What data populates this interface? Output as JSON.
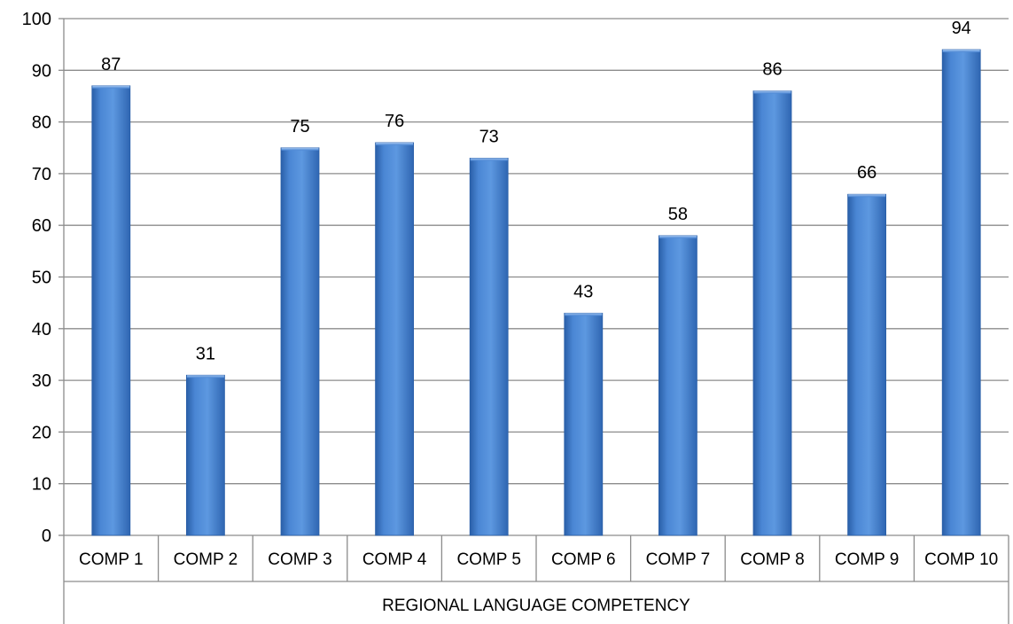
{
  "chart_data": {
    "type": "bar",
    "categories": [
      "COMP 1",
      "COMP 2",
      "COMP 3",
      "COMP 4",
      "COMP 5",
      "COMP 6",
      "COMP 7",
      "COMP 8",
      "COMP 9",
      "COMP 10"
    ],
    "values": [
      87,
      31,
      75,
      76,
      73,
      43,
      58,
      86,
      66,
      94
    ],
    "data_labels": [
      "87",
      "31",
      "75",
      "76",
      "73",
      "43",
      "58",
      "86",
      "66",
      "94"
    ],
    "category_group_label": "REGIONAL LANGUAGE COMPETENCY",
    "title": "",
    "xlabel": "",
    "ylabel": "",
    "ylim": [
      0,
      100
    ],
    "y_ticks": [
      0,
      10,
      20,
      30,
      40,
      50,
      60,
      70,
      80,
      90,
      100
    ],
    "y_tick_labels": [
      "0",
      "10",
      "20",
      "30",
      "40",
      "50",
      "60",
      "70",
      "80",
      "90",
      "100"
    ],
    "grid": true,
    "legend": "none",
    "bar_color": "#4a86d4"
  }
}
